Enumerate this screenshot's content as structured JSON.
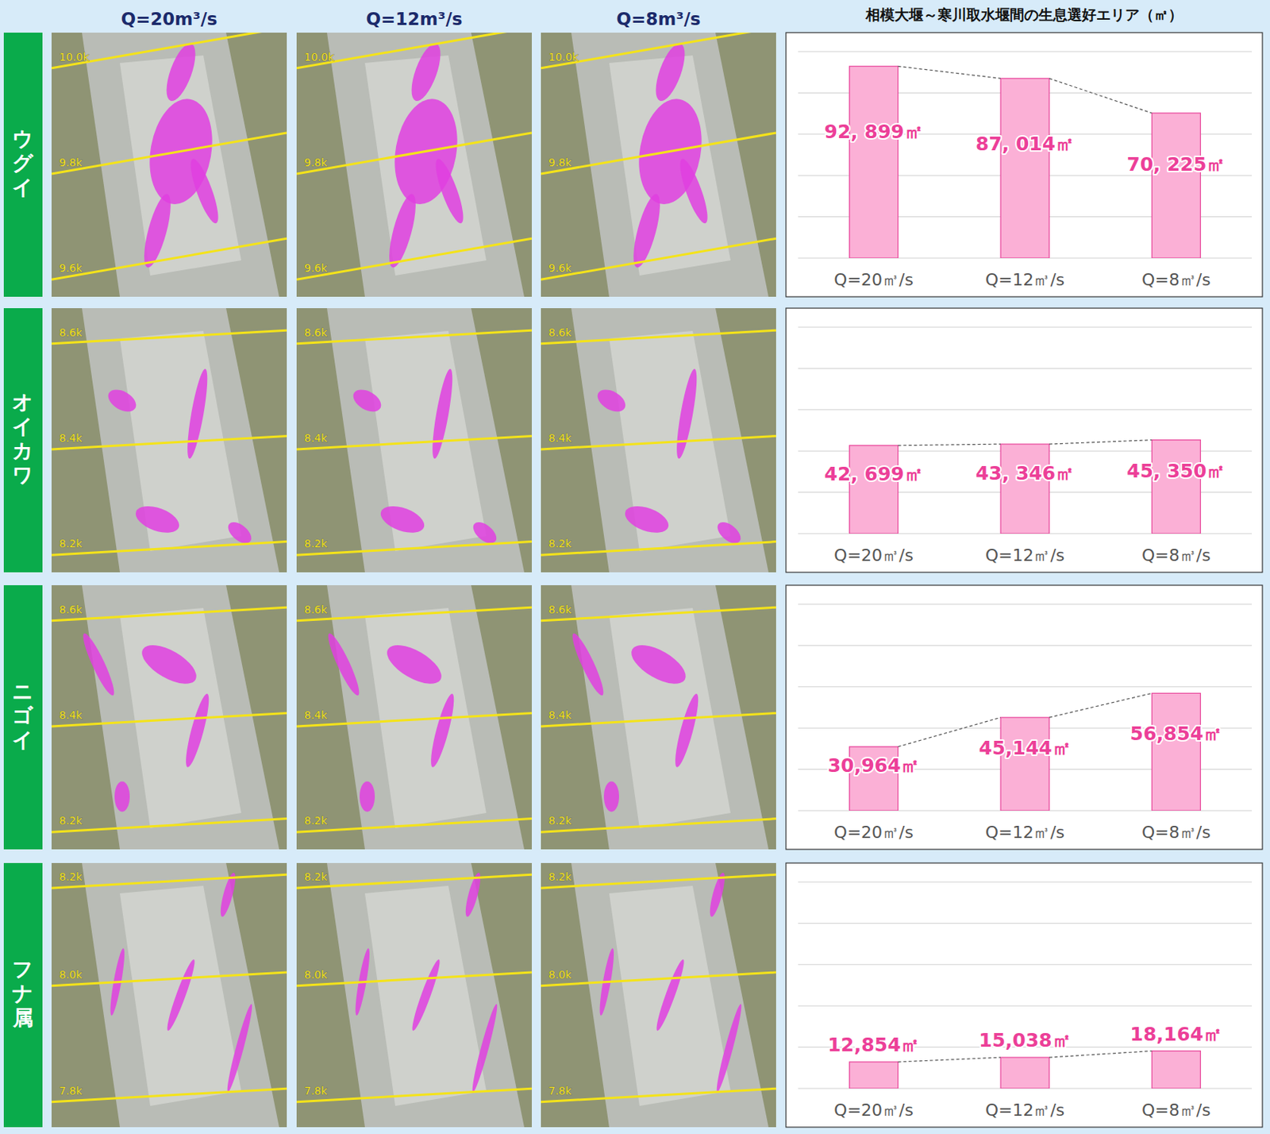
{
  "column_heads": [
    "Q=20m³/s",
    "Q=12m³/s",
    "Q=8m³/s"
  ],
  "rows": [
    {
      "label": "ウグイ",
      "km_labels": [
        "10.0k",
        "9.8k",
        "9.6k"
      ]
    },
    {
      "label": "オイカワ",
      "km_labels": [
        "8.6k",
        "8.4k",
        "8.2k"
      ]
    },
    {
      "label": "ニゴイ",
      "km_labels": [
        "8.6k",
        "8.4k",
        "8.2k"
      ]
    },
    {
      "label": "フナ属",
      "km_labels": [
        "8.2k",
        "8.0k",
        "7.8k"
      ]
    }
  ],
  "chart_data": [
    {
      "type": "bar",
      "title": "相模大堰～寒川取水堰間の生息選好エリア（㎡）",
      "categories": [
        "Q=20㎥/s",
        "Q=12㎥/s",
        "Q=8㎥/s"
      ],
      "values": [
        92899,
        87014,
        70225
      ],
      "value_labels": [
        "92, 899㎡",
        "87, 014㎡",
        "70, 225㎡"
      ],
      "color": "#fbb0d6",
      "ylim": [
        0,
        100000
      ],
      "yticks": [
        0,
        20000,
        40000,
        60000,
        80000,
        100000
      ],
      "grid": true,
      "data_labels": true,
      "tick_labels": "x"
    },
    {
      "type": "bar",
      "categories": [
        "Q=20㎥/s",
        "Q=12㎥/s",
        "Q=8㎥/s"
      ],
      "values": [
        42699,
        43346,
        45350
      ],
      "value_labels": [
        "42, 699㎡",
        "43, 346㎡",
        "45, 350㎡"
      ],
      "color": "#fbb0d6",
      "ylim": [
        0,
        100000
      ],
      "yticks": [
        0,
        20000,
        40000,
        60000,
        80000,
        100000
      ],
      "grid": true,
      "data_labels": true,
      "tick_labels": "x"
    },
    {
      "type": "bar",
      "categories": [
        "Q=20㎥/s",
        "Q=12㎥/s",
        "Q=8㎥/s"
      ],
      "values": [
        30964,
        45144,
        56854
      ],
      "value_labels": [
        "30,964㎡",
        "45,144㎡",
        "56,854㎡"
      ],
      "color": "#fbb0d6",
      "ylim": [
        0,
        100000
      ],
      "yticks": [
        0,
        20000,
        40000,
        60000,
        80000,
        100000
      ],
      "grid": true,
      "data_labels": true,
      "tick_labels": "x"
    },
    {
      "type": "bar",
      "categories": [
        "Q=20㎥/s",
        "Q=12㎥/s",
        "Q=8㎥/s"
      ],
      "values": [
        12854,
        15038,
        18164
      ],
      "value_labels": [
        "12,854㎡",
        "15,038㎡",
        "18,164㎡"
      ],
      "color": "#fbb0d6",
      "ylim": [
        0,
        100000
      ],
      "yticks": [
        0,
        20000,
        40000,
        60000,
        80000,
        100000
      ],
      "grid": true,
      "data_labels": true,
      "tick_labels": "x"
    }
  ]
}
